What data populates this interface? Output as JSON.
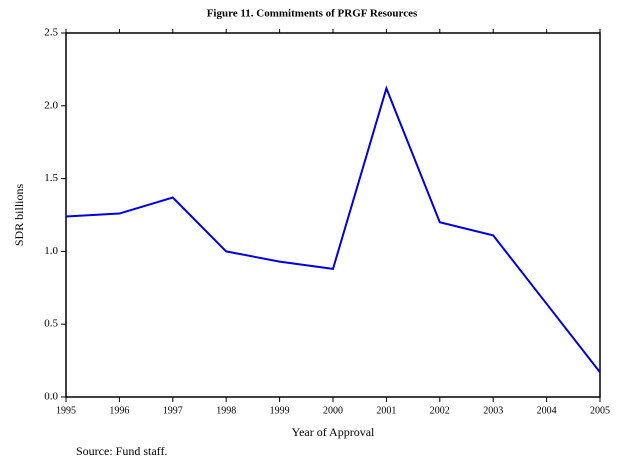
{
  "chart_data": {
    "type": "line",
    "title": "Figure 11. Commitments of PRGF Resources",
    "x_label": "Year of Approval",
    "y_label": "SDR billions",
    "source": "Source: Fund staff.",
    "x": [
      1995,
      1996,
      1997,
      1998,
      1999,
      2000,
      2001,
      2002,
      2003,
      2004,
      2005
    ],
    "series": [
      {
        "name": "Commitments",
        "color": "#0000e0",
        "values": [
          1.24,
          1.26,
          1.37,
          1.0,
          0.93,
          0.88,
          2.12,
          1.2,
          1.11,
          0.64,
          0.17
        ]
      }
    ],
    "xlim": [
      1995,
      2005
    ],
    "xticks": [
      1995,
      1996,
      1997,
      1998,
      1999,
      2000,
      2001,
      2002,
      2003,
      2004,
      2005
    ],
    "ylim": [
      0,
      2.5
    ],
    "yticks": [
      {
        "value": 0,
        "label": "0.0"
      },
      {
        "value": 0.5,
        "label": "0.5"
      },
      {
        "value": 1,
        "label": "1.0"
      },
      {
        "value": 1.5,
        "label": "1.5"
      },
      {
        "value": 2,
        "label": "2.0"
      },
      {
        "value": 2.5,
        "label": "2.5"
      }
    ],
    "grid": false
  }
}
